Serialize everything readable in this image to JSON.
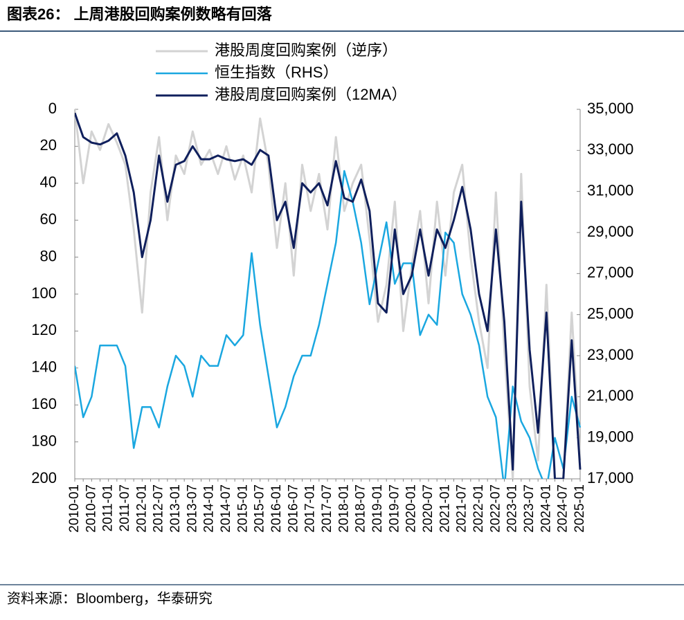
{
  "title": "图表26：  上周港股回购案例数略有回落",
  "source": "资料来源：Bloomberg，华泰研究",
  "chart_data": {
    "type": "line",
    "x": [
      "2010-01",
      "2010-04",
      "2010-07",
      "2010-10",
      "2011-01",
      "2011-04",
      "2011-07",
      "2011-10",
      "2012-01",
      "2012-04",
      "2012-07",
      "2012-10",
      "2013-01",
      "2013-04",
      "2013-07",
      "2013-10",
      "2014-01",
      "2014-04",
      "2014-07",
      "2014-10",
      "2015-01",
      "2015-04",
      "2015-07",
      "2015-10",
      "2016-01",
      "2016-04",
      "2016-07",
      "2016-10",
      "2017-01",
      "2017-04",
      "2017-07",
      "2017-10",
      "2018-01",
      "2018-04",
      "2018-07",
      "2018-10",
      "2019-01",
      "2019-04",
      "2019-07",
      "2019-10",
      "2020-01",
      "2020-04",
      "2020-07",
      "2020-10",
      "2021-01",
      "2021-04",
      "2021-07",
      "2021-10",
      "2022-01",
      "2022-04",
      "2022-07",
      "2022-10",
      "2023-01",
      "2023-04",
      "2023-07",
      "2023-10",
      "2024-01",
      "2024-04",
      "2024-07",
      "2024-10",
      "2025-01"
    ],
    "ylim": [
      0,
      200
    ],
    "y_reversed": true,
    "yticks": [
      0,
      20,
      40,
      60,
      80,
      100,
      120,
      140,
      160,
      180,
      200
    ],
    "y2lim": [
      17000,
      35000
    ],
    "y2ticks": [
      {
        "value": 17000,
        "label": "17,000"
      },
      {
        "value": 19000,
        "label": "19,000"
      },
      {
        "value": 21000,
        "label": "21,000"
      },
      {
        "value": 23000,
        "label": "23,000"
      },
      {
        "value": 25000,
        "label": "25,000"
      },
      {
        "value": 27000,
        "label": "27,000"
      },
      {
        "value": 29000,
        "label": "29,000"
      },
      {
        "value": 31000,
        "label": "31,000"
      },
      {
        "value": 33000,
        "label": "33,000"
      },
      {
        "value": 35000,
        "label": "35,000"
      }
    ],
    "series": [
      {
        "name": "港股周度回购案例（逆序）",
        "color": "#d3d3d3",
        "width": 3,
        "values": [
          0,
          40,
          12,
          22,
          8,
          18,
          30,
          65,
          110,
          45,
          15,
          60,
          25,
          35,
          12,
          30,
          22,
          35,
          20,
          38,
          25,
          45,
          5,
          30,
          75,
          40,
          90,
          30,
          55,
          35,
          65,
          15,
          55,
          40,
          30,
          70,
          115,
          95,
          50,
          120,
          85,
          55,
          105,
          50,
          90,
          45,
          30,
          80,
          115,
          140,
          45,
          130,
          200,
          35,
          150,
          190,
          95,
          200,
          200,
          110,
          190
        ]
      },
      {
        "name": "恒生指数（RHS）",
        "color": "#1aa7e0",
        "width": 2.5,
        "axis": "y2",
        "values": [
          22500,
          20000,
          21000,
          23500,
          23500,
          23500,
          22500,
          18500,
          20500,
          20500,
          19500,
          21500,
          23000,
          22500,
          21000,
          23000,
          22500,
          22500,
          24000,
          23500,
          24000,
          28000,
          24500,
          22000,
          19500,
          20500,
          22000,
          23000,
          23000,
          24500,
          26500,
          28500,
          32000,
          30500,
          28500,
          25500,
          27500,
          29500,
          26500,
          27500,
          27500,
          24000,
          25000,
          24500,
          29000,
          28500,
          26000,
          25000,
          23500,
          21000,
          20000,
          16500,
          21500,
          19800,
          19000,
          17500,
          16500,
          19000,
          17500,
          21000,
          19500
        ]
      },
      {
        "name": "港股周度回购案例（12MA）",
        "color": "#0f1f5c",
        "width": 3,
        "values": [
          2,
          15,
          18,
          19,
          17,
          13,
          25,
          45,
          80,
          60,
          25,
          50,
          30,
          28,
          20,
          27,
          27,
          25,
          27,
          28,
          27,
          30,
          22,
          25,
          60,
          50,
          75,
          40,
          45,
          40,
          52,
          28,
          48,
          50,
          38,
          55,
          105,
          110,
          65,
          100,
          90,
          65,
          90,
          65,
          75,
          60,
          42,
          65,
          100,
          120,
          65,
          115,
          195,
          50,
          130,
          175,
          110,
          200,
          200,
          125,
          195
        ]
      }
    ]
  }
}
